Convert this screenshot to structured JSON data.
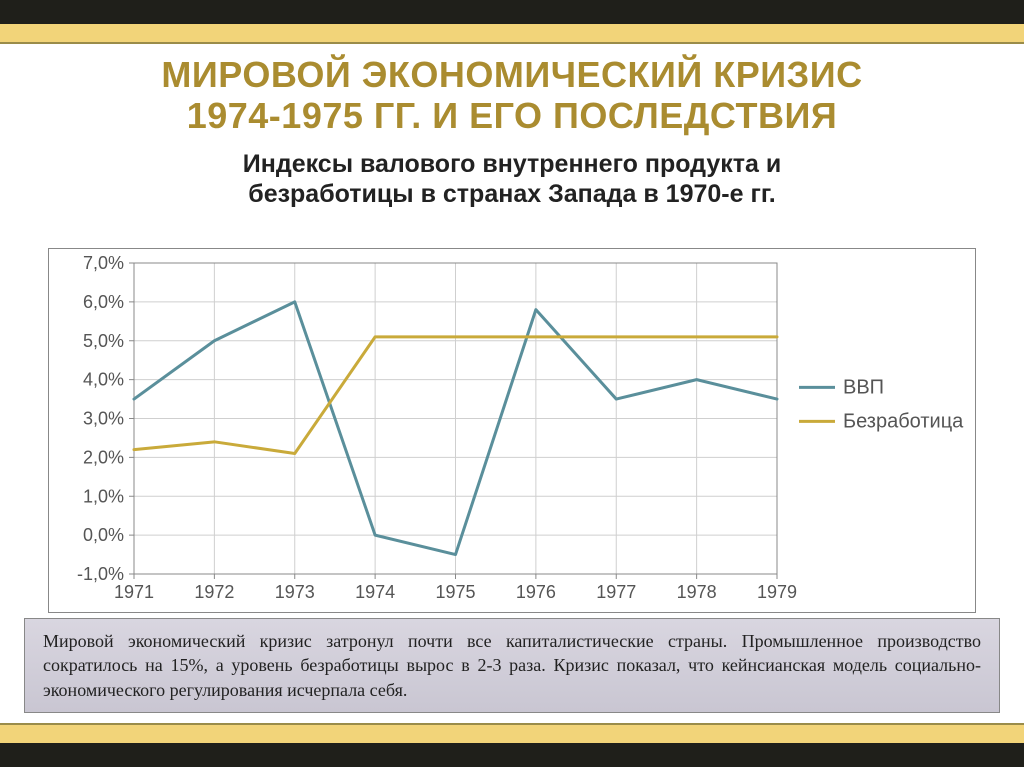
{
  "title_line1": "МИРОВОЙ ЭКОНОМИЧЕСКИЙ КРИЗИС",
  "title_line2": "1974-1975 ГГ. И ЕГО ПОСЛЕДСТВИЯ",
  "title_color": "#aa8c30",
  "title_fontsize": 36,
  "subtitle_line1": "Индексы валового внутреннего продукта и",
  "subtitle_line2": "безработицы в странах Запада в 1970-е гг.",
  "subtitle_fontsize": 25,
  "caption": "Мировой экономический кризис затронул почти все капиталистические страны. Промышленное производство сократилось на 15%, а уровень безработицы вырос в 2-3 раза. Кризис показал, что кейнсианская модель социально-экономического регулирования исчерпала себя.",
  "caption_fontsize": 18,
  "chart": {
    "type": "line",
    "x_categories": [
      "1971",
      "1972",
      "1973",
      "1974",
      "1975",
      "1976",
      "1977",
      "1978",
      "1979"
    ],
    "y_ticks": [
      "-1,0%",
      "0,0%",
      "1,0%",
      "2,0%",
      "3,0%",
      "4,0%",
      "5,0%",
      "6,0%",
      "7,0%"
    ],
    "ylim": [
      -1,
      7
    ],
    "ytick_step": 1,
    "series": [
      {
        "name": "ВВП",
        "color": "#5a8f9b",
        "width": 3,
        "values": [
          3.5,
          5.0,
          6.0,
          0.0,
          -0.5,
          5.8,
          3.5,
          4.0,
          3.5
        ]
      },
      {
        "name": "Безработица",
        "color": "#c9aa3a",
        "width": 3,
        "values": [
          2.2,
          2.4,
          2.1,
          5.1,
          5.1,
          5.1,
          5.1,
          5.1,
          5.1
        ]
      }
    ],
    "grid_color": "#cfcfcf",
    "axis_color": "#888888",
    "tick_font_size": 18,
    "legend_font_size": 20,
    "plot_bg": "#ffffff",
    "legend_marker_len": 36
  },
  "slide_bg": "#ffffff",
  "frame_dark": "#1f1f1a",
  "frame_gold": "#f2d479"
}
